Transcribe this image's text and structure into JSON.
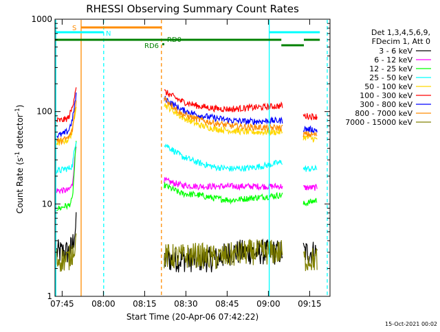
{
  "chart_data": {
    "type": "line",
    "title": "RHESSI Observing Summary Count Rates",
    "xlabel": "Start Time (20-Apr-06 07:42:22)",
    "ylabel_main": "Count Rate (s",
    "ylabel_sup1": "-1",
    "ylabel_mid": " detector",
    "ylabel_sup2": "-1",
    "ylabel_end": ")",
    "footer": "15-Oct-2021 00:02",
    "x_unit": "minutes since 07:42:22",
    "xlim": [
      0,
      100
    ],
    "ylim": [
      1,
      1000
    ],
    "y_scale": "log",
    "x_ticks": [
      {
        "label": "07:45",
        "t": 2.6
      },
      {
        "label": "08:00",
        "t": 17.6
      },
      {
        "label": "08:15",
        "t": 32.6
      },
      {
        "label": "08:30",
        "t": 47.6
      },
      {
        "label": "08:45",
        "t": 62.6
      },
      {
        "label": "09:00",
        "t": 77.6
      },
      {
        "label": "09:15",
        "t": 92.6
      }
    ],
    "y_ticks": [
      {
        "label": "1",
        "v": 1
      },
      {
        "label": "10",
        "v": 10
      },
      {
        "label": "100",
        "v": 100
      },
      {
        "label": "1000",
        "v": 1000
      }
    ],
    "legend_title_1": "Det 1,3,4,5,6,9,",
    "legend_title_2": "FDecim 1, Att 0",
    "legend_placement": "right",
    "grid": false,
    "series": [
      {
        "name": "3 - 6 keV",
        "color": "#000000",
        "pre": [
          3,
          3,
          3,
          3,
          3.5,
          6
        ],
        "main": [
          2.5,
          2.5,
          2.5,
          2.5,
          3,
          3,
          3,
          3
        ],
        "post": [
          3,
          3
        ]
      },
      {
        "name": "6 - 12 keV",
        "color": "#ff00ff",
        "pre": [
          14,
          14,
          14,
          14,
          16,
          45
        ],
        "main": [
          18,
          16,
          15.5,
          15.5,
          15.5,
          15.5,
          15.5,
          15.5
        ],
        "post": [
          15,
          15
        ]
      },
      {
        "name": "12 - 25 keV",
        "color": "#00ff00",
        "pre": [
          9,
          9,
          9.5,
          9.5,
          11,
          45
        ],
        "main": [
          16,
          13,
          12.5,
          11.5,
          11,
          11.5,
          12,
          12.5
        ],
        "post": [
          10,
          11
        ]
      },
      {
        "name": "25 - 50 keV",
        "color": "#00ffff",
        "pre": [
          23,
          23,
          24,
          24,
          26,
          50
        ],
        "main": [
          45,
          33,
          28,
          25,
          24,
          24.5,
          26,
          28.5
        ],
        "post": [
          24,
          24
        ]
      },
      {
        "name": "50 - 100 keV",
        "color": "#ffd700",
        "pre": [
          46,
          46,
          48,
          50,
          60,
          120
        ],
        "main": [
          120,
          88,
          72,
          65,
          62,
          60,
          60,
          60
        ],
        "post": [
          53,
          50
        ]
      },
      {
        "name": "100 - 300 keV",
        "color": "#ff0000",
        "pre": [
          80,
          80,
          82,
          85,
          110,
          190
        ],
        "main": [
          165,
          130,
          115,
          108,
          106,
          110,
          112,
          116
        ],
        "post": [
          90,
          88
        ]
      },
      {
        "name": "300 - 800 keV",
        "color": "#0000ff",
        "pre": [
          55,
          56,
          58,
          62,
          80,
          150
        ],
        "main": [
          140,
          105,
          92,
          85,
          80,
          78,
          79,
          80
        ],
        "post": [
          65,
          63
        ]
      },
      {
        "name": "800 - 7000 keV",
        "color": "#ff8c00",
        "pre": [
          48,
          48,
          50,
          52,
          62,
          130
        ],
        "main": [
          140,
          95,
          82,
          75,
          70,
          68,
          67,
          67
        ],
        "post": [
          57,
          56
        ]
      },
      {
        "name": "7000 - 15000 keV",
        "color": "#808000",
        "pre": [
          2.5,
          2.5,
          2.5,
          2.5,
          3,
          4
        ],
        "main": [
          2.7,
          2.7,
          2.8,
          2.6,
          2.8,
          3,
          3,
          3
        ],
        "post": [
          2.5,
          2.5
        ]
      }
    ],
    "flag_labels": {
      "s": "S",
      "n": "N",
      "rd0": "RD0",
      "rd6": "RD6"
    },
    "colors": {
      "cyan": "#00ffff",
      "orange": "#ff8c00",
      "green": "#008000"
    }
  }
}
